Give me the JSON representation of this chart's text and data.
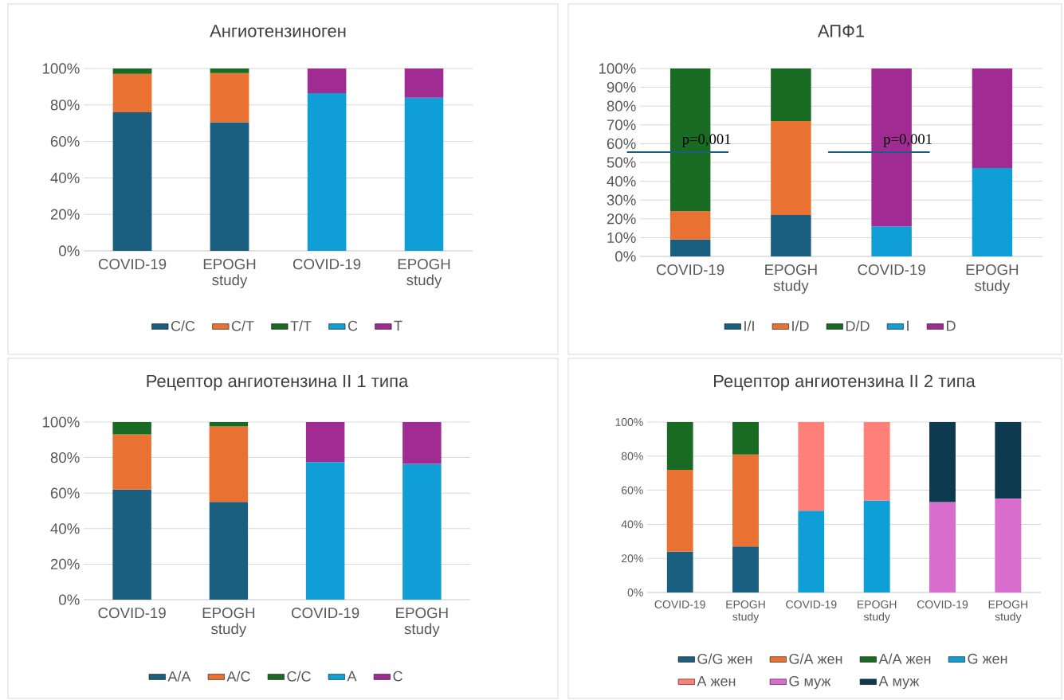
{
  "chart_data": [
    {
      "type": "bar",
      "stacked": true,
      "title": "Ангиотензиноген",
      "categories": [
        "COVID-19",
        "EPOGH study",
        "COVID-19",
        "EPOGH study"
      ],
      "ylim": [
        0,
        100
      ],
      "yticks": [
        {
          "value": 0,
          "label": "0%"
        },
        {
          "value": 20,
          "label": "20%"
        },
        {
          "value": 40,
          "label": "40%"
        },
        {
          "value": 60,
          "label": "60%"
        },
        {
          "value": 80,
          "label": "80%"
        },
        {
          "value": 100,
          "label": "100%"
        }
      ],
      "grid": "y",
      "legend": "bottom",
      "series": [
        {
          "name": "C/C",
          "color": "#1a5e80",
          "values": [
            76,
            70.5,
            null,
            null
          ]
        },
        {
          "name": "C/T",
          "color": "#e97132",
          "values": [
            21,
            27,
            null,
            null
          ]
        },
        {
          "name": "T/T",
          "color": "#196b24",
          "values": [
            3,
            2.5,
            null,
            null
          ]
        },
        {
          "name": "C",
          "color": "#0f9ed5",
          "values": [
            null,
            null,
            86.5,
            84
          ]
        },
        {
          "name": "T",
          "color": "#a02b93",
          "values": [
            null,
            null,
            13.5,
            16
          ]
        }
      ]
    },
    {
      "type": "bar",
      "stacked": true,
      "title": "АПФ1",
      "categories": [
        "COVID-19",
        "EPOGH study",
        "COVID-19",
        "EPOGH study"
      ],
      "ylim": [
        0,
        100
      ],
      "yticks": [
        {
          "value": 0,
          "label": "0%"
        },
        {
          "value": 10,
          "label": "10%"
        },
        {
          "value": 20,
          "label": "20%"
        },
        {
          "value": 30,
          "label": "30%"
        },
        {
          "value": 40,
          "label": "40%"
        },
        {
          "value": 50,
          "label": "50%"
        },
        {
          "value": 60,
          "label": "60%"
        },
        {
          "value": 70,
          "label": "70%"
        },
        {
          "value": 80,
          "label": "80%"
        },
        {
          "value": 90,
          "label": "90%"
        },
        {
          "value": 100,
          "label": "100%"
        }
      ],
      "grid": "y",
      "legend": "bottom",
      "annotations": [
        "p=0,001",
        "p=0,001"
      ],
      "series": [
        {
          "name": "I/I",
          "color": "#1a5e80",
          "values": [
            9,
            22,
            null,
            null
          ]
        },
        {
          "name": "I/D",
          "color": "#e97132",
          "values": [
            15,
            50,
            null,
            null
          ]
        },
        {
          "name": "D/D",
          "color": "#196b24",
          "values": [
            76,
            28,
            null,
            null
          ]
        },
        {
          "name": "I",
          "color": "#0f9ed5",
          "values": [
            null,
            null,
            16,
            47
          ]
        },
        {
          "name": "D",
          "color": "#a02b93",
          "values": [
            null,
            null,
            84,
            53
          ]
        }
      ]
    },
    {
      "type": "bar",
      "stacked": true,
      "title": "Рецептор ангиотензина II 1 типа",
      "categories": [
        "COVID-19",
        "EPOGH study",
        "COVID-19",
        "EPOGH study"
      ],
      "ylim": [
        0,
        100
      ],
      "yticks": [
        {
          "value": 0,
          "label": "0%"
        },
        {
          "value": 20,
          "label": "20%"
        },
        {
          "value": 40,
          "label": "40%"
        },
        {
          "value": 60,
          "label": "60%"
        },
        {
          "value": 80,
          "label": "80%"
        },
        {
          "value": 100,
          "label": "100%"
        }
      ],
      "grid": "y",
      "legend": "bottom",
      "series": [
        {
          "name": "A/A",
          "color": "#1a5e80",
          "values": [
            62,
            55,
            null,
            null
          ]
        },
        {
          "name": "A/C",
          "color": "#e97132",
          "values": [
            31,
            42.5,
            null,
            null
          ]
        },
        {
          "name": "C/C",
          "color": "#196b24",
          "values": [
            7,
            2.5,
            null,
            null
          ]
        },
        {
          "name": "A",
          "color": "#0f9ed5",
          "values": [
            null,
            null,
            77.5,
            76.5
          ]
        },
        {
          "name": "C",
          "color": "#a02b93",
          "values": [
            null,
            null,
            22.5,
            23.5
          ]
        }
      ]
    },
    {
      "type": "bar",
      "stacked": true,
      "title": "Рецептор ангиотензина II 2 типа",
      "categories": [
        "COVID-19",
        "EPOGH study",
        "COVID-19",
        "EPOGH study",
        "COVID-19",
        "EPOGH study"
      ],
      "ylim": [
        0,
        100
      ],
      "yticks": [
        {
          "value": 0,
          "label": "0%"
        },
        {
          "value": 20,
          "label": "20%"
        },
        {
          "value": 40,
          "label": "40%"
        },
        {
          "value": 60,
          "label": "60%"
        },
        {
          "value": 80,
          "label": "80%"
        },
        {
          "value": 100,
          "label": "100%"
        }
      ],
      "grid": "y",
      "legend": "bottom",
      "series": [
        {
          "name": "G/G жен",
          "color": "#1a5e80",
          "values": [
            24,
            27,
            null,
            null,
            null,
            null
          ]
        },
        {
          "name": "G/A жен",
          "color": "#e97132",
          "values": [
            48,
            54,
            null,
            null,
            null,
            null
          ]
        },
        {
          "name": "A/A жен",
          "color": "#196b24",
          "values": [
            28,
            19,
            null,
            null,
            null,
            null
          ]
        },
        {
          "name": "G жен",
          "color": "#0f9ed5",
          "values": [
            null,
            null,
            48,
            54,
            null,
            null
          ]
        },
        {
          "name": "A жен",
          "color": "#ff7f79",
          "values": [
            null,
            null,
            52,
            46,
            null,
            null
          ]
        },
        {
          "name": "G муж",
          "color": "#d86dcd",
          "values": [
            null,
            null,
            null,
            null,
            53,
            55
          ]
        },
        {
          "name": "A муж",
          "color": "#0e3a4f",
          "values": [
            null,
            null,
            null,
            null,
            47,
            45
          ]
        }
      ]
    }
  ]
}
